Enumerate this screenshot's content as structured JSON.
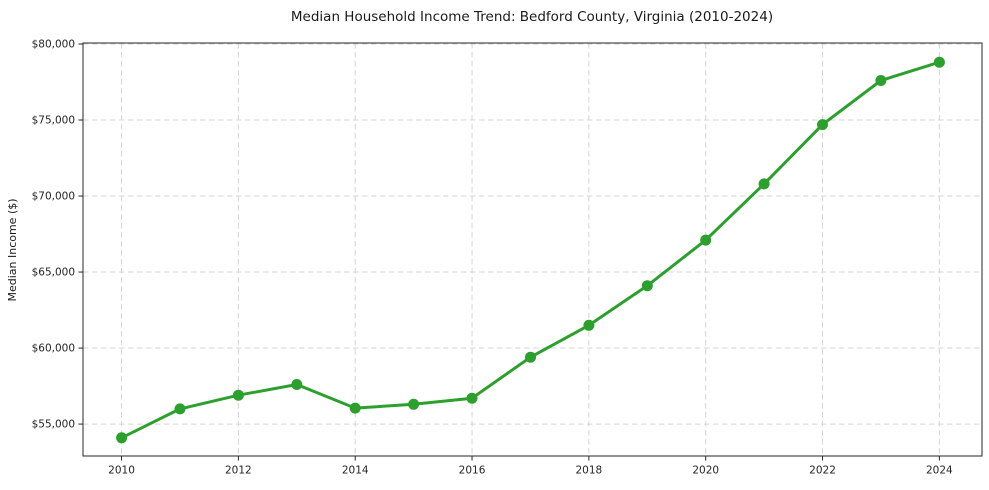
{
  "chart_data": {
    "type": "line",
    "title": "Median Household Income Trend: Bedford County, Virginia (2010-2024)",
    "xlabel": "",
    "ylabel": "Median Income ($)",
    "series_name": "Median Household Income",
    "x": [
      2010,
      2011,
      2012,
      2013,
      2014,
      2015,
      2016,
      2017,
      2018,
      2019,
      2020,
      2021,
      2022,
      2023,
      2024
    ],
    "values": [
      54100,
      56000,
      56900,
      57600,
      56050,
      56300,
      56700,
      59400,
      61500,
      64100,
      67100,
      70800,
      74700,
      77600,
      78800
    ],
    "x_ticks": [
      2010,
      2012,
      2014,
      2016,
      2018,
      2020,
      2022,
      2024
    ],
    "y_ticks": [
      55000,
      60000,
      65000,
      70000,
      75000,
      80000
    ],
    "y_tick_labels": [
      "$55,000",
      "$60,000",
      "$65,000",
      "$70,000",
      "$75,000",
      "$80,000"
    ],
    "xlim": [
      2009.34,
      2024.73
    ],
    "ylim": [
      52900,
      80066
    ],
    "grid": true,
    "grid_style": "dashed",
    "legend": "none",
    "line_color": "#2ca02c",
    "marker": "circle",
    "grid_color": "#d5d5d5",
    "spine_color": "#262626"
  }
}
